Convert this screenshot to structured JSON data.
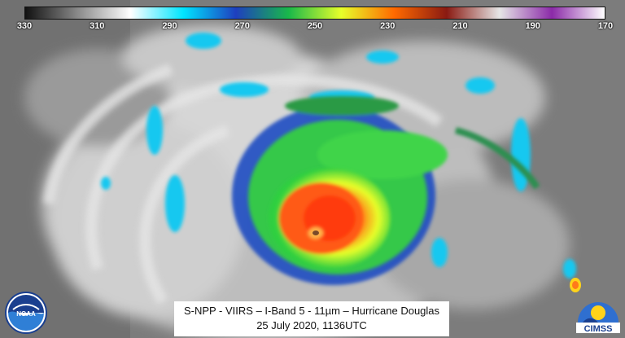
{
  "colorbar": {
    "tick_labels": [
      "330",
      "310",
      "290",
      "270",
      "250",
      "230",
      "210",
      "190",
      "170"
    ],
    "stops": [
      "#111111",
      "#8a8a8a",
      "#ffffff",
      "#00e5ff",
      "#1e3fbf",
      "#19b84a",
      "#e8ff2a",
      "#ff6a00",
      "#8a1a12",
      "#e6e6e6",
      "#8b2aa8",
      "#ffffff"
    ]
  },
  "caption": {
    "line1": "S-NPP - VIIRS – I-Band 5 - 11µm – Hurricane Douglas",
    "line2": "25 July 2020, 1136UTC"
  },
  "logos": {
    "noaa_text": "NOAA",
    "cimss_text": "CIMSS"
  },
  "colors": {
    "background_gray": "#7d7d7d",
    "cloud_white": "#e9e9e9",
    "cold_cyan": "#00d9ff",
    "cold_green": "#3fd44a",
    "core_red": "#ff4a1a"
  }
}
